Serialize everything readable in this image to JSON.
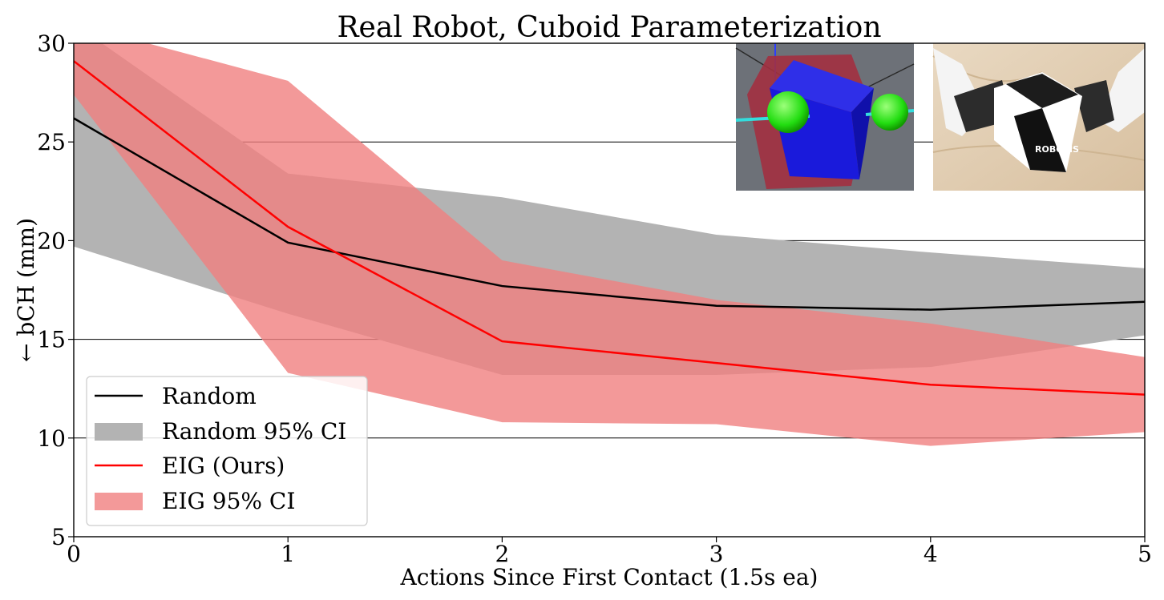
{
  "chart_data": {
    "type": "line",
    "title": "Real Robot, Cuboid Parameterization",
    "xlabel": "Actions Since First Contact (1.5s ea)",
    "ylabel": "← bCH (mm)",
    "xlim": [
      0,
      5
    ],
    "ylim": [
      5,
      30
    ],
    "x_ticks": [
      "0",
      "1",
      "2",
      "3",
      "4",
      "5"
    ],
    "y_ticks": [
      "5",
      "10",
      "15",
      "20",
      "25",
      "30"
    ],
    "grid": "horizontal",
    "legend_position": "lower-left",
    "x": [
      0,
      1,
      2,
      3,
      4,
      5
    ],
    "series": [
      {
        "name": "Random",
        "kind": "line",
        "color": "#000000",
        "values": [
          26.2,
          19.9,
          17.7,
          16.7,
          16.5,
          16.9
        ]
      },
      {
        "name": "Random 95% CI",
        "kind": "band",
        "color": "#b3b3b3",
        "lower": [
          19.7,
          16.3,
          13.2,
          13.2,
          13.6,
          15.2
        ],
        "upper": [
          31.0,
          23.4,
          22.2,
          20.3,
          19.4,
          18.6
        ]
      },
      {
        "name": "EIG (Ours)",
        "kind": "line",
        "color": "#ff0000",
        "values": [
          29.1,
          20.7,
          14.9,
          13.8,
          12.7,
          12.2
        ]
      },
      {
        "name": "EIG 95% CI",
        "kind": "band",
        "color": "#f08080",
        "lower": [
          27.4,
          13.3,
          10.8,
          10.7,
          9.6,
          10.3
        ],
        "upper": [
          31.0,
          28.1,
          19.0,
          17.0,
          15.8,
          14.1
        ]
      }
    ],
    "insets": [
      {
        "name": "simulation-render",
        "description_icon": "cube-with-gripper-spheres-icon"
      },
      {
        "name": "robot-photo",
        "description_icon": "robot-grasping-box-icon",
        "box_text": "ROBOTIS"
      }
    ]
  }
}
